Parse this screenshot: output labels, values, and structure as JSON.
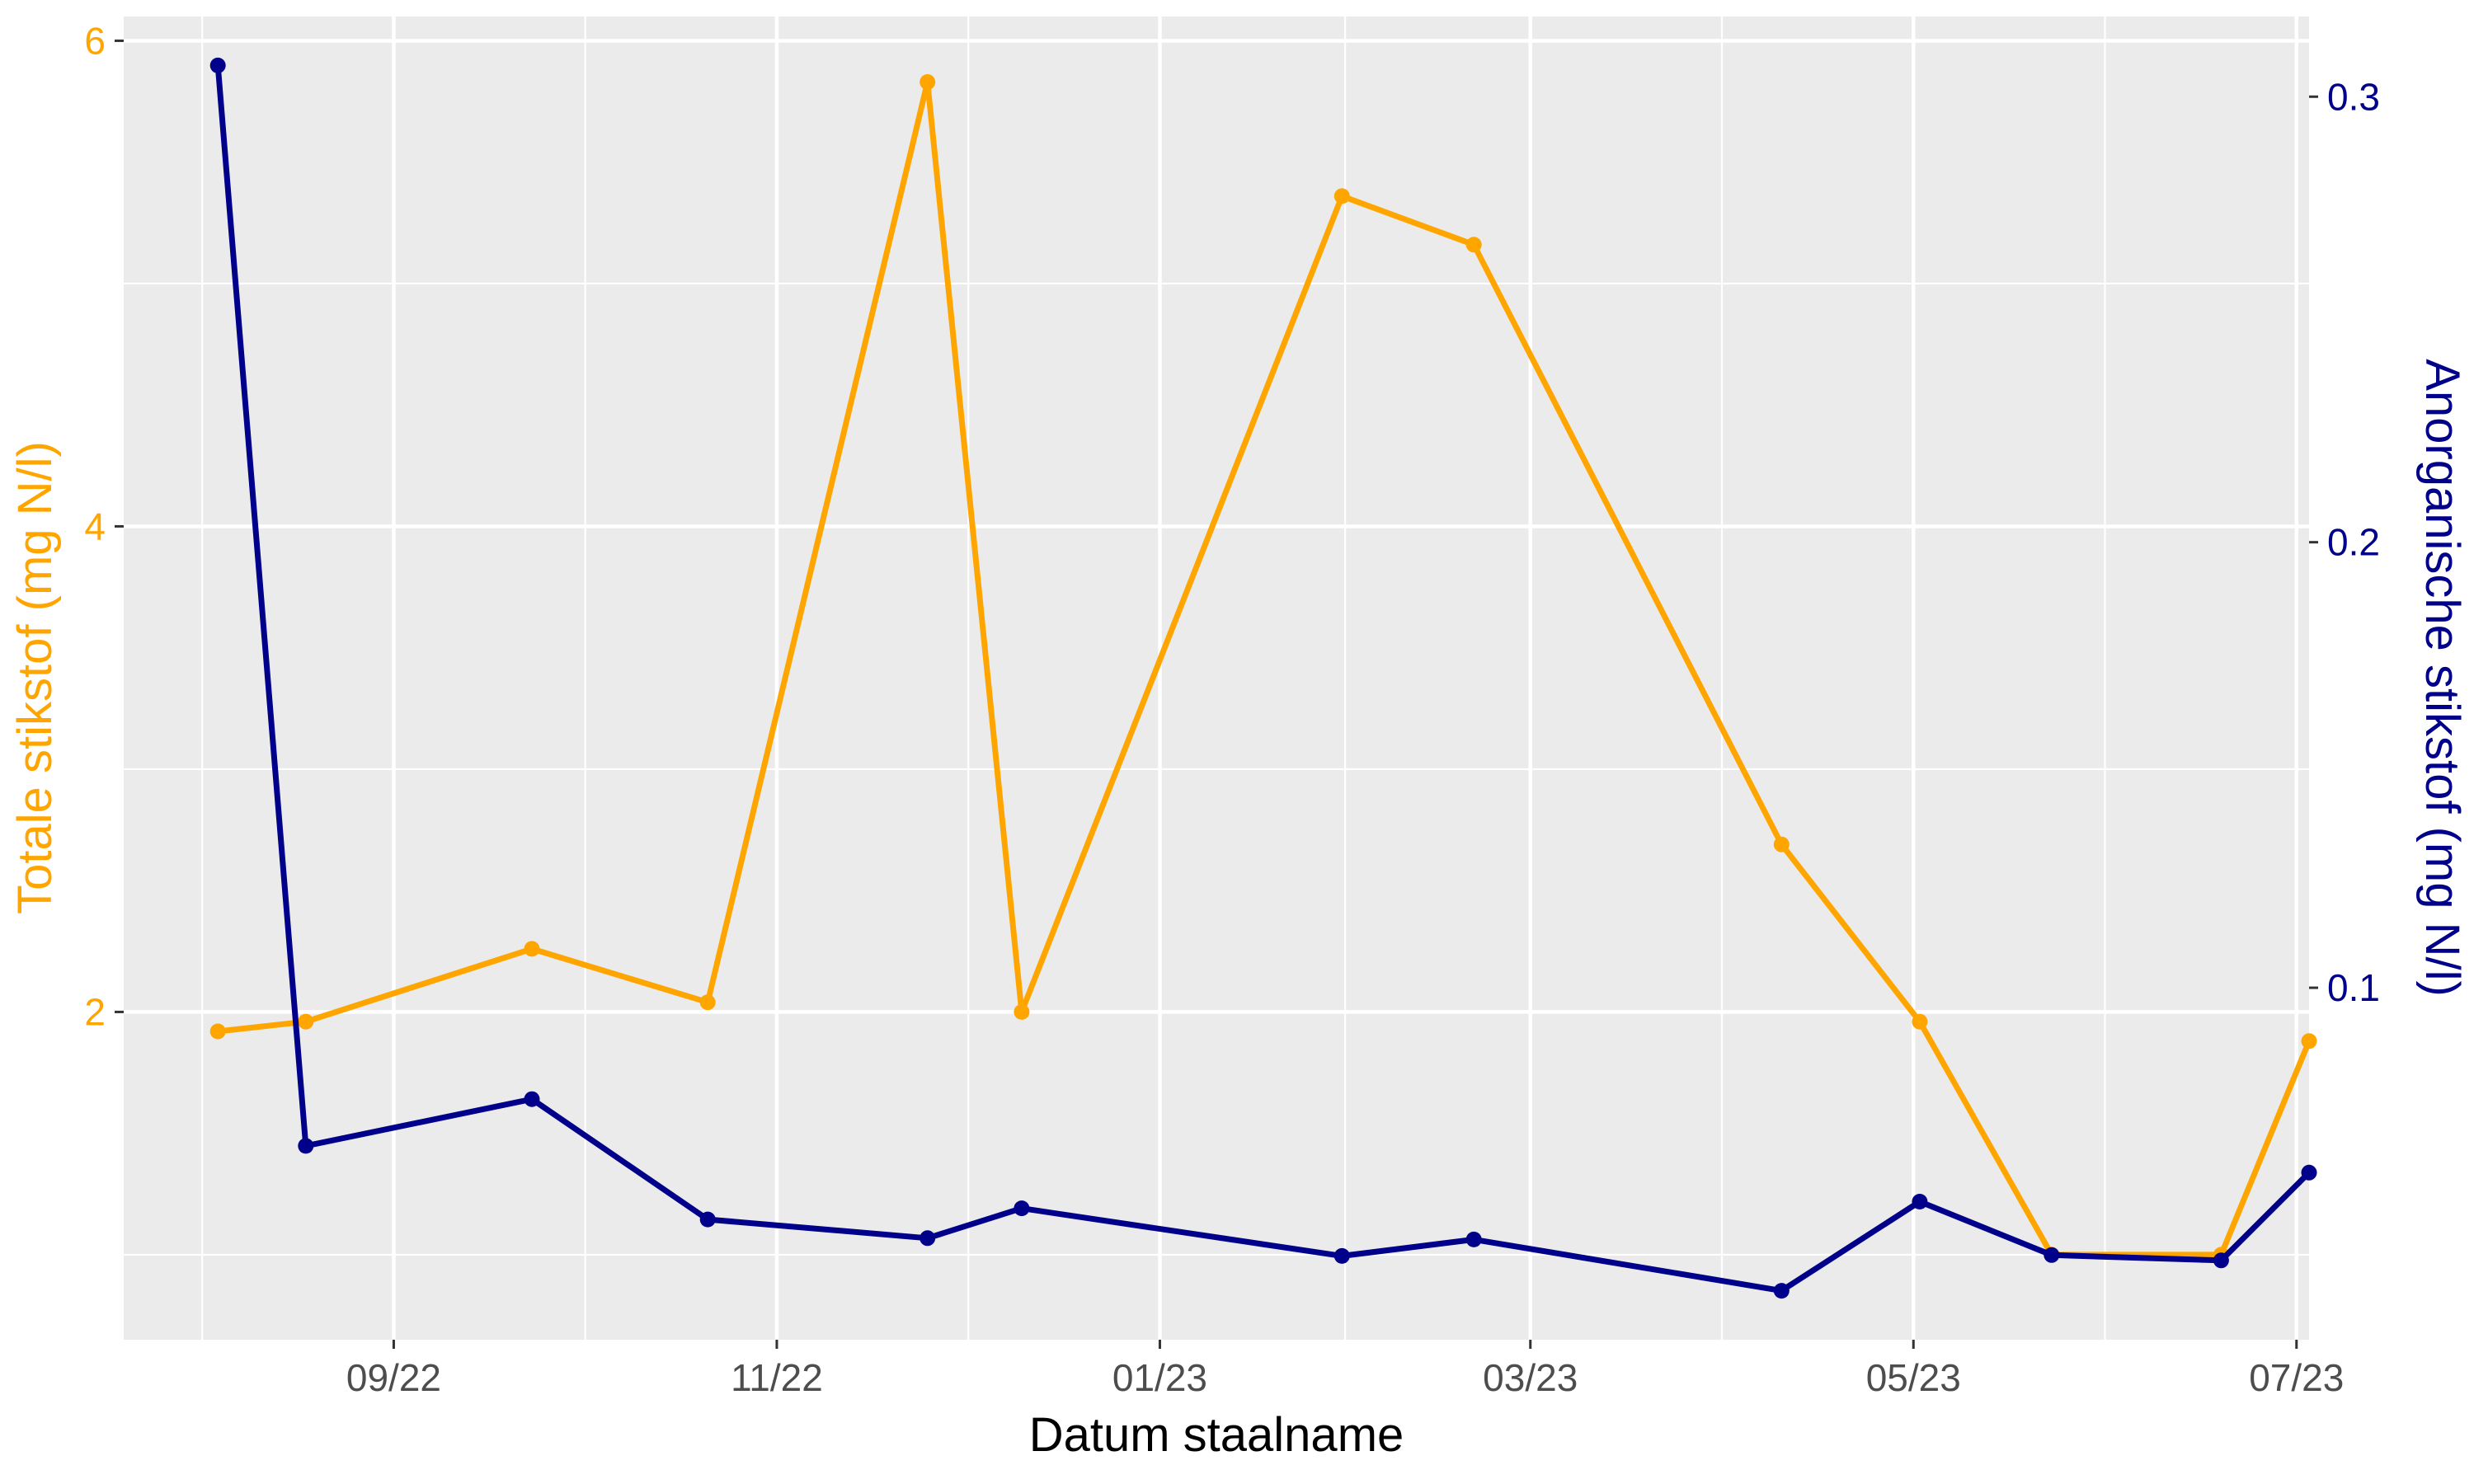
{
  "chart_data": {
    "type": "line",
    "title": "",
    "xlabel": "Datum staalname",
    "ylabel_left": "Totale stikstof (mg N/l)",
    "ylabel_right": "Anorganische stikstof (mg N/l)",
    "x_ticks": [
      "2022-09-01",
      "2022-11-01",
      "2023-01-01",
      "2023-03-01",
      "2023-05-01",
      "2023-07-01"
    ],
    "x_tick_labels": [
      "09/22",
      "11/22",
      "01/23",
      "03/23",
      "05/23",
      "07/23"
    ],
    "xlim": [
      "2022-07-20",
      "2023-07-03"
    ],
    "y_left_ticks": [
      2,
      4,
      6
    ],
    "y_left_lim": [
      0.65,
      6.1
    ],
    "y_right_ticks": [
      0.1,
      0.2,
      0.3
    ],
    "y_right_lim": [
      0.021,
      0.318
    ],
    "grid": true,
    "legend": "none",
    "series": [
      {
        "axis": "left",
        "color": "#FFA500",
        "x": [
          "2022-08-04",
          "2022-08-18",
          "2022-09-23",
          "2022-10-21",
          "2022-11-25",
          "2022-12-10",
          "2023-01-30",
          "2023-02-20",
          "2023-04-10",
          "2023-05-02",
          "2023-05-23",
          "2023-06-19",
          "2023-07-03"
        ],
        "values": [
          1.92,
          1.96,
          2.26,
          2.04,
          5.83,
          2.0,
          5.36,
          5.16,
          2.69,
          1.96,
          1.0,
          1.0,
          1.88
        ]
      },
      {
        "axis": "right",
        "color": "#00008B",
        "x": [
          "2022-08-04",
          "2022-08-18",
          "2022-09-23",
          "2022-10-21",
          "2022-11-25",
          "2022-12-10",
          "2023-01-30",
          "2023-02-20",
          "2023-04-10",
          "2023-05-02",
          "2023-05-23",
          "2023-06-19",
          "2023-07-03"
        ],
        "values": [
          0.307,
          0.0645,
          0.075,
          0.048,
          0.0438,
          0.0505,
          0.0398,
          0.0435,
          0.032,
          0.052,
          0.04,
          0.0388,
          0.0585
        ]
      }
    ]
  }
}
